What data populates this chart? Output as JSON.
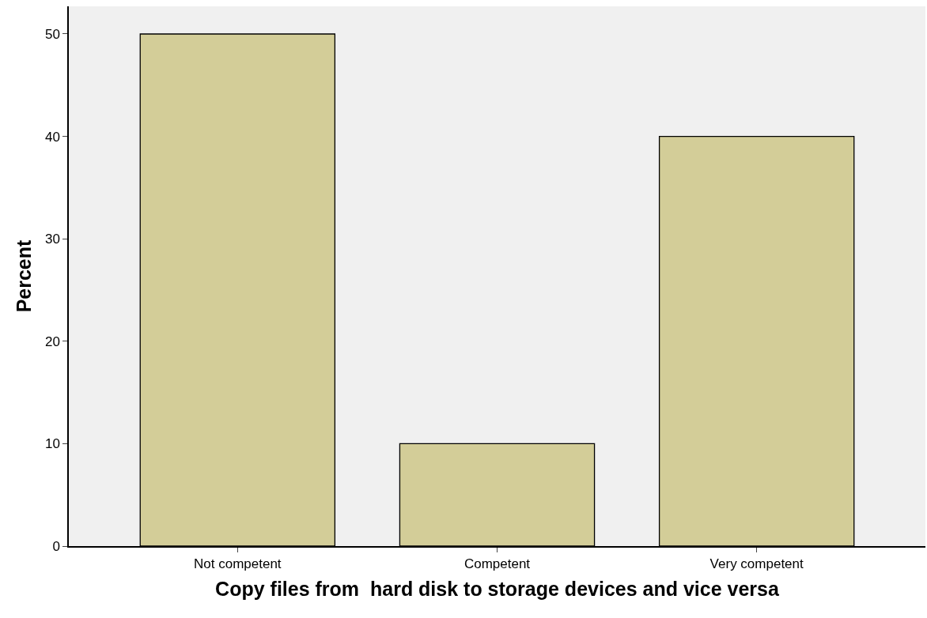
{
  "chart_data": {
    "type": "bar",
    "xlabel": "Copy files from  hard disk to storage devices and vice versa",
    "ylabel": "Percent",
    "categories": [
      "Not competent",
      "Competent",
      "Very competent"
    ],
    "values": [
      50,
      10,
      40
    ],
    "color": "#d3cd98",
    "ylim": [
      0,
      52.7
    ],
    "yticks": [
      0,
      10,
      20,
      30,
      40,
      50
    ],
    "grid": false
  }
}
